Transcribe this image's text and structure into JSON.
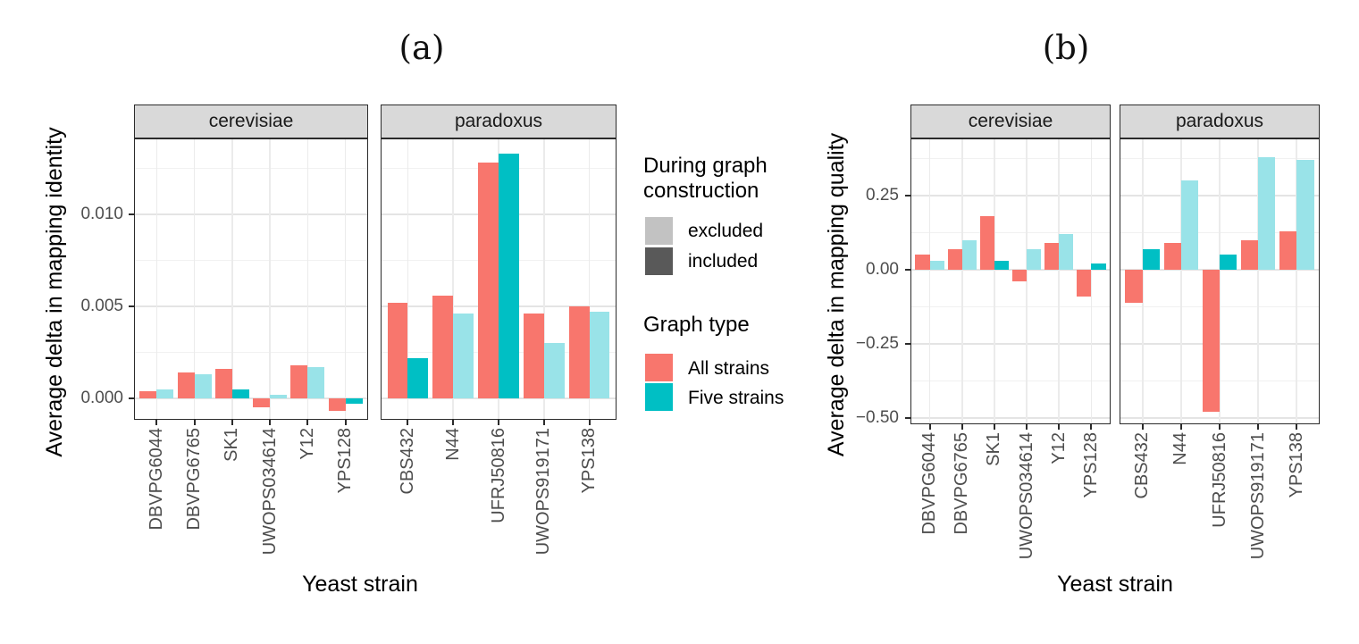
{
  "chart_data": [
    {
      "type": "bar",
      "title": "(a)",
      "xlabel": "Yeast strain",
      "ylabel": "Average delta in mapping identity",
      "ylim": [
        -0.0012,
        0.0141
      ],
      "grid": true,
      "legend_position": "right",
      "yticks": [
        {
          "value": 0.0,
          "label": "0.000"
        },
        {
          "value": 0.005,
          "label": "0.005"
        },
        {
          "value": 0.01,
          "label": "0.010"
        }
      ],
      "yminor": [
        0.0025,
        0.0075,
        0.0125
      ],
      "facets": [
        {
          "label": "cerevisiae",
          "categories": [
            "DBVPG6044",
            "DBVPG6765",
            "SK1",
            "UWOPS034614",
            "Y12",
            "YPS128"
          ],
          "series": [
            {
              "name": "All strains",
              "values": [
                0.0004,
                0.0014,
                0.0016,
                -0.0005,
                0.0018,
                -0.0007
              ],
              "included": [
                true,
                true,
                true,
                true,
                true,
                true
              ]
            },
            {
              "name": "Five strains",
              "values": [
                0.0005,
                0.0013,
                0.0005,
                0.0002,
                0.0017,
                -0.0003
              ],
              "included": [
                false,
                false,
                true,
                false,
                false,
                true
              ]
            }
          ]
        },
        {
          "label": "paradoxus",
          "categories": [
            "CBS432",
            "N44",
            "UFRJ50816",
            "UWOPS919171",
            "YPS138"
          ],
          "series": [
            {
              "name": "All strains",
              "values": [
                0.0052,
                0.0056,
                0.0128,
                0.0046,
                0.005
              ],
              "included": [
                true,
                true,
                true,
                true,
                true
              ]
            },
            {
              "name": "Five strains",
              "values": [
                0.0022,
                0.0046,
                0.0133,
                0.003,
                0.0047
              ],
              "included": [
                true,
                false,
                true,
                false,
                false
              ]
            }
          ]
        }
      ]
    },
    {
      "type": "bar",
      "title": "(b)",
      "xlabel": "Yeast strain",
      "ylabel": "Average delta in mapping quality",
      "ylim": [
        -0.53,
        0.44
      ],
      "grid": true,
      "legend_position": "none",
      "yticks": [
        {
          "value": 0.25,
          "label": "0.25"
        },
        {
          "value": 0.0,
          "label": "0.00"
        },
        {
          "value": -0.25,
          "label": "−0.25"
        },
        {
          "value": -0.5,
          "label": "−0.50"
        }
      ],
      "yminor": [
        0.375,
        0.125,
        -0.125,
        -0.375
      ],
      "facets": [
        {
          "label": "cerevisiae",
          "categories": [
            "DBVPG6044",
            "DBVPG6765",
            "SK1",
            "UWOPS034614",
            "Y12",
            "YPS128"
          ],
          "series": [
            {
              "name": "All strains",
              "values": [
                0.05,
                0.07,
                0.18,
                -0.04,
                0.09,
                -0.09
              ],
              "included": [
                true,
                true,
                true,
                true,
                true,
                true
              ]
            },
            {
              "name": "Five strains",
              "values": [
                0.03,
                0.1,
                0.03,
                0.07,
                0.12,
                0.02
              ],
              "included": [
                false,
                false,
                true,
                false,
                false,
                true
              ]
            }
          ]
        },
        {
          "label": "paradoxus",
          "categories": [
            "CBS432",
            "N44",
            "UFRJ50816",
            "UWOPS919171",
            "YPS138"
          ],
          "series": [
            {
              "name": "All strains",
              "values": [
                -0.11,
                0.09,
                -0.48,
                0.1,
                0.13
              ],
              "included": [
                true,
                true,
                true,
                true,
                true
              ]
            },
            {
              "name": "Five strains",
              "values": [
                0.07,
                0.3,
                0.05,
                0.38,
                0.37
              ],
              "included": [
                true,
                false,
                true,
                false,
                false
              ]
            }
          ]
        }
      ]
    }
  ],
  "legend": {
    "groups": [
      {
        "title": "During graph construction",
        "items": [
          {
            "label": "excluded",
            "color": "#C2C2C2"
          },
          {
            "label": "included",
            "color": "#595959"
          }
        ]
      },
      {
        "title": "Graph type",
        "items": [
          {
            "label": "All strains",
            "color": "#F8766D"
          },
          {
            "label": "Five strains",
            "color": "#00BFC4"
          }
        ]
      }
    ]
  },
  "colors": {
    "all_strains": "#F8766D",
    "five_strains": "#00BFC4",
    "five_strains_excluded": "#99E3E8",
    "strip_bg": "#D9D9D9",
    "panel_border": "#2B2B2B",
    "grid_major": "#E4E4E4",
    "grid_minor": "#F1F1F1",
    "grid_vertical": "#EBEBEB",
    "axis_text": "#4D4D4D",
    "strip_text": "#1A1A1A"
  }
}
